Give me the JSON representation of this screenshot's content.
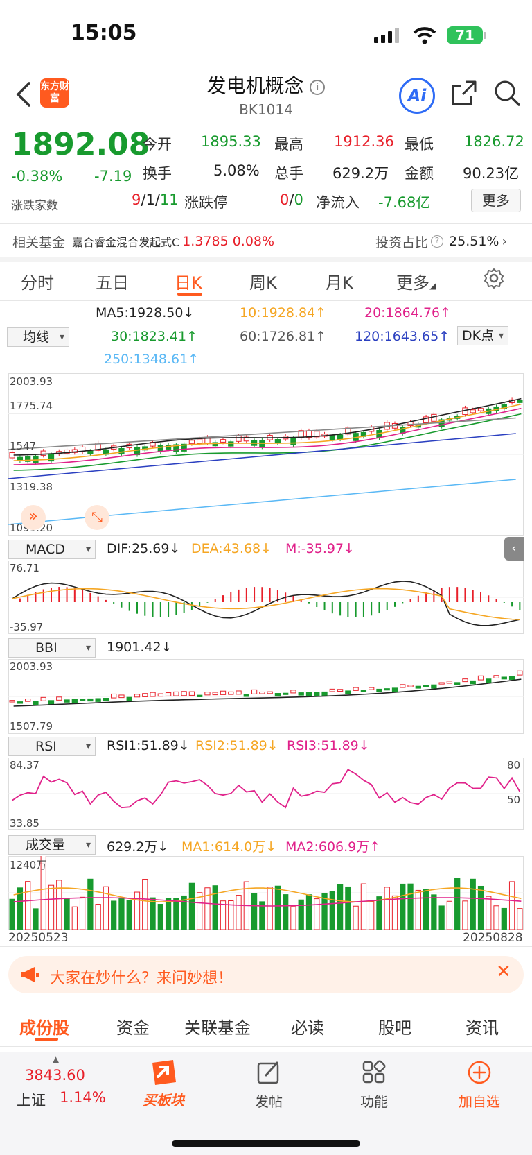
{
  "status": {
    "time": "15:05",
    "battery": "71"
  },
  "header": {
    "title": "发电机概念",
    "code": "BK1014",
    "logo_text": "东方财富",
    "ai_label": "Ai"
  },
  "quote": {
    "price": "1892.08",
    "change_pct": "-0.38%",
    "change": "-7.19",
    "open_label": "今开",
    "open": "1895.33",
    "high_label": "最高",
    "high": "1912.36",
    "low_label": "最低",
    "low": "1826.72",
    "turnover_label": "换手",
    "turnover": "5.08%",
    "volume_label": "总手",
    "volume": "629.2万",
    "amount_label": "金额",
    "amount": "90.23亿",
    "updown_label": "涨跌家数",
    "up": "9",
    "flat": "1",
    "down": "11",
    "limit_label": "涨跌停",
    "limit_up": "0",
    "limit_down": "0",
    "netflow_label": "净流入",
    "netflow": "-7.68亿",
    "more_label": "更多"
  },
  "fund": {
    "label": "相关基金",
    "name": "嘉合睿金混合发起式C",
    "value": "1.3785",
    "pct": "0.08%",
    "ratio_label": "投资占比",
    "ratio": "25.51%"
  },
  "tabs": [
    "分时",
    "五日",
    "日K",
    "周K",
    "月K",
    "更多"
  ],
  "ma": {
    "select": "均线",
    "ma5": "MA5:1928.50↓",
    "ma10": "10:1928.84↑",
    "ma20": "20:1864.76↑",
    "ma30": "30:1823.41↑",
    "ma60": "60:1726.81↑",
    "ma120": "120:1643.65↑",
    "ma250": "250:1348.61↑",
    "dk": "DK点"
  },
  "kline_axis": [
    "2003.93",
    "1775.74",
    "1547",
    "1319.38",
    "1091.20"
  ],
  "macd": {
    "select": "MACD",
    "dif": "DIF:25.69↓",
    "dea": "DEA:43.68↓",
    "m": "M:-35.97↓",
    "top": "76.71",
    "bottom": "-35.97"
  },
  "bbi": {
    "select": "BBI",
    "value": "1901.42↓",
    "top": "2003.93",
    "bottom": "1507.79"
  },
  "rsi": {
    "select": "RSI",
    "rsi1": "RSI1:51.89↓",
    "rsi2": "RSI2:51.89↓",
    "rsi3": "RSI3:51.89↓",
    "top": "84.37",
    "bottom": "33.85",
    "r80": "80",
    "r50": "50"
  },
  "vol": {
    "select": "成交量",
    "value": "629.2万↓",
    "ma1": "MA1:614.0万↓",
    "ma2": "MA2:606.9万↑",
    "top": "1240万",
    "date_start": "20250523",
    "date_end": "20250828"
  },
  "banner": {
    "text": "大家在炒什么？来问妙想！"
  },
  "bottom_tabs": [
    "成份股",
    "资金",
    "关联基金",
    "必读",
    "股吧",
    "资讯"
  ],
  "bottom_nav": {
    "index_value": "3843.60",
    "index_name": "上证",
    "index_pct": "1.14%",
    "buy": "买板块",
    "post": "发帖",
    "func": "功能",
    "add": "加自选"
  },
  "colors": {
    "up": "#e8202a",
    "down": "#189a2e",
    "accent": "#ff5a1f"
  }
}
